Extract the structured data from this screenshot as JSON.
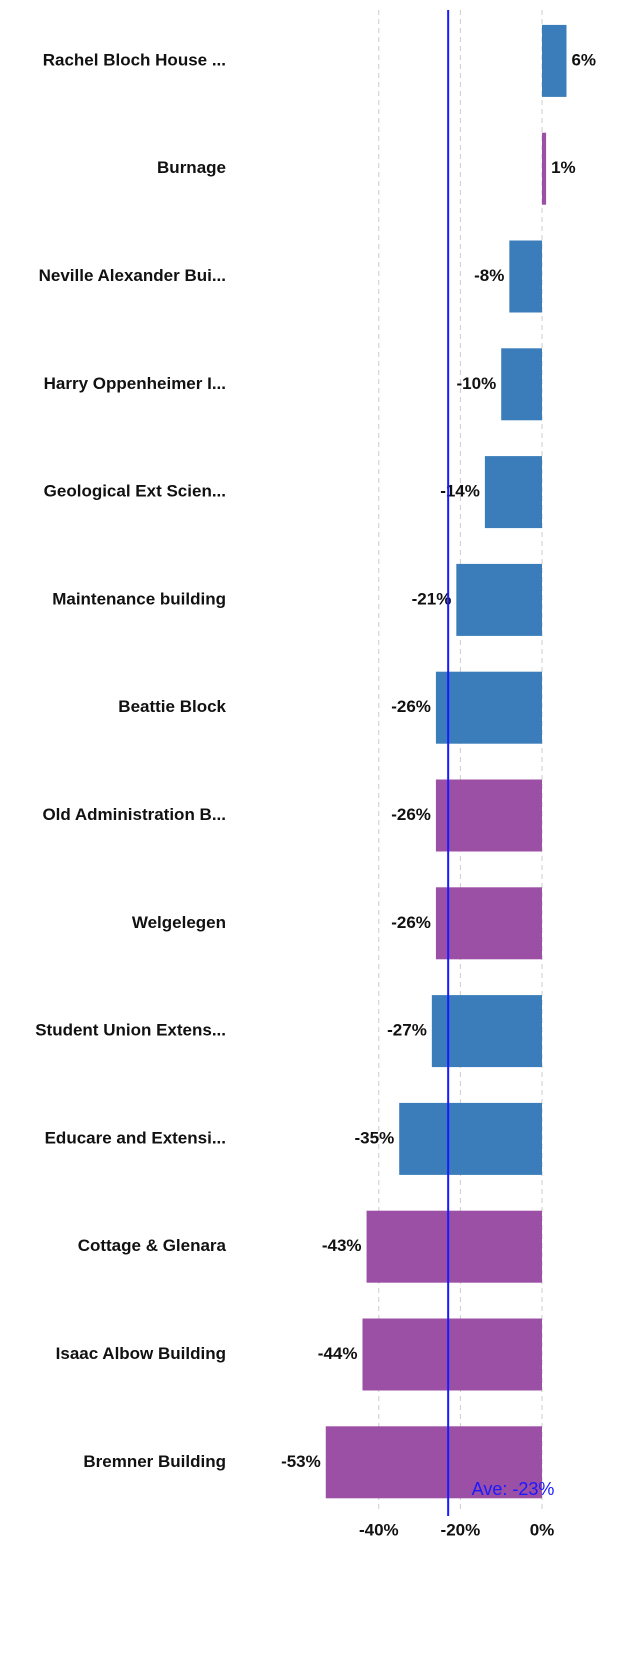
{
  "chart_data": {
    "type": "hbar",
    "categories": [
      "Rachel Bloch House ...",
      "Burnage",
      "Neville Alexander Bui...",
      "Harry Oppenheimer I...",
      "Geological Ext Scien...",
      "Maintenance building",
      "Beattie Block",
      "Old Administration B...",
      "Welgelegen",
      "Student Union Extens...",
      "Educare and Extensi...",
      "Cottage & Glenara",
      "Isaac Albow Building",
      "Bremner Building"
    ],
    "values": [
      6,
      1,
      -8,
      -10,
      -14,
      -21,
      -26,
      -26,
      -26,
      -27,
      -35,
      -43,
      -44,
      -53
    ],
    "value_labels": [
      "6%",
      "1%",
      "-8%",
      "-10%",
      "-14%",
      "-21%",
      "-26%",
      "-26%",
      "-26%",
      "-27%",
      "-35%",
      "-43%",
      "-44%",
      "-53%"
    ],
    "colors": [
      "#3a7dba",
      "#9b4fa5",
      "#3a7dba",
      "#3a7dba",
      "#3a7dba",
      "#3a7dba",
      "#3a7dba",
      "#9b4fa5",
      "#9b4fa5",
      "#3a7dba",
      "#3a7dba",
      "#9b4fa5",
      "#9b4fa5",
      "#9b4fa5"
    ],
    "xlim": [
      -55,
      10
    ],
    "xticks": [
      {
        "value": -40,
        "label": "-40%"
      },
      {
        "value": -20,
        "label": "-20%"
      },
      {
        "value": 0,
        "label": "0%"
      }
    ],
    "grid": true,
    "average": {
      "value": -23,
      "label": "Ave: -23%",
      "color": "#1a1aff"
    }
  }
}
